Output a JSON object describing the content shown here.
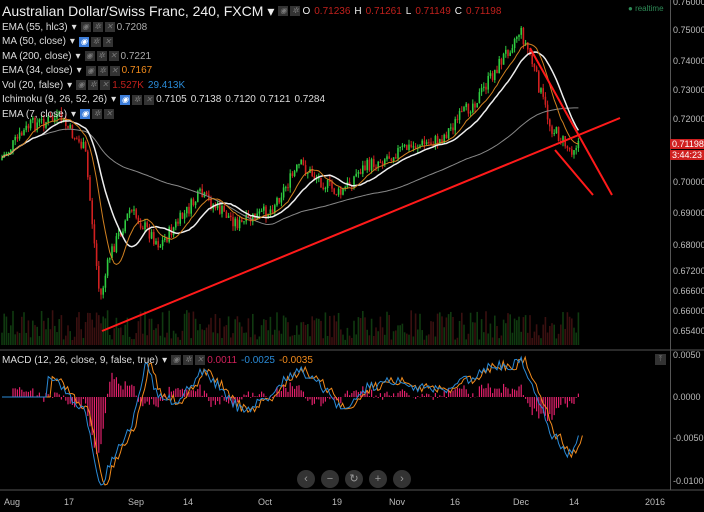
{
  "header": {
    "symbol": "Australian Dollar/Swiss Franc, 240, FXCM",
    "o_label": "O",
    "o": "0.71236",
    "h_label": "H",
    "h": "0.71261",
    "l_label": "L",
    "l": "0.71149",
    "c_label": "C",
    "c": "0.71198"
  },
  "indicators": [
    {
      "name": "EMA (55, hlc3)",
      "values": [
        "0.7208"
      ],
      "eye_on": false
    },
    {
      "name": "MA (50, close)",
      "values": [],
      "eye_on": true
    },
    {
      "name": "MA (200, close)",
      "values": [
        "0.7221"
      ],
      "eye_on": false
    },
    {
      "name": "EMA (34, close)",
      "values": [
        "0.7167"
      ],
      "eye_on": false
    },
    {
      "name": "Vol (20, false)",
      "values": [
        "1.527K",
        "29.413K"
      ],
      "eye_on": false
    },
    {
      "name": "Ichimoku (9, 26, 52, 26)",
      "values": [
        "0.7105",
        "0.7138",
        "0.7120",
        "0.7121",
        "0.7284"
      ],
      "eye_on": true
    },
    {
      "name": "EMA (7, close)",
      "values": [],
      "eye_on": true
    }
  ],
  "macd": {
    "name": "MACD (12, 26, close, 9, false, true)",
    "values": [
      "0.0011",
      "-0.0025",
      "-0.0035"
    ]
  },
  "realtime": "realtime",
  "price_axis": [
    "0.76000",
    "0.75000",
    "0.74000",
    "0.73000",
    "0.72000",
    "0.70000",
    "0.69000",
    "0.68000",
    "0.67200",
    "0.66600",
    "0.66000",
    "0.65400"
  ],
  "macd_axis": [
    "0.0050",
    "0.0000",
    "-0.0050",
    "-0.0100"
  ],
  "last_price": "0.71198",
  "countdown": "3:44:23",
  "x_axis": [
    "Aug",
    "17",
    "Sep",
    "14",
    "Oct",
    "19",
    "Nov",
    "16",
    "Dec",
    "14",
    "2016"
  ],
  "colors": {
    "up": "#2ecc40",
    "down": "#d02020",
    "trend": "#ff1a1a"
  }
}
